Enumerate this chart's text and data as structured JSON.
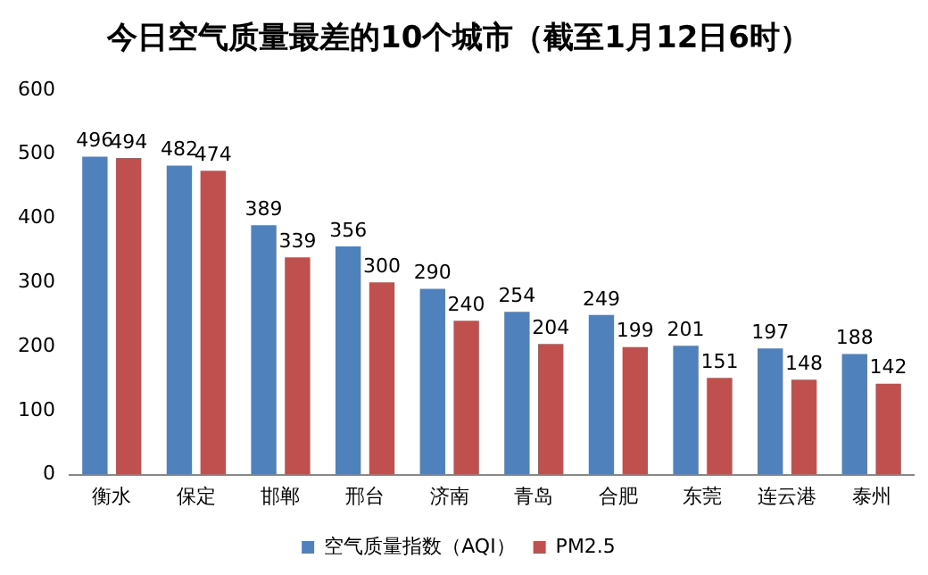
{
  "chart_data": {
    "type": "bar",
    "title": "今日空气质量最差的10个城市（截至1月12日6时）",
    "categories": [
      "衡水",
      "保定",
      "邯郸",
      "邢台",
      "济南",
      "青岛",
      "合肥",
      "东莞",
      "连云港",
      "泰州"
    ],
    "series": [
      {
        "name": "空气质量指数（AQI）",
        "color": "#4f81bd",
        "values": [
          496,
          482,
          389,
          356,
          290,
          254,
          249,
          201,
          197,
          188
        ]
      },
      {
        "name": "PM2.5",
        "color": "#c0504d",
        "values": [
          494,
          474,
          339,
          300,
          240,
          204,
          199,
          151,
          148,
          142
        ]
      }
    ],
    "ylim": [
      0,
      600
    ],
    "yticks": [
      0,
      100,
      200,
      300,
      400,
      500,
      600
    ],
    "grid": false,
    "legend": "bottom",
    "data_labels": true
  }
}
